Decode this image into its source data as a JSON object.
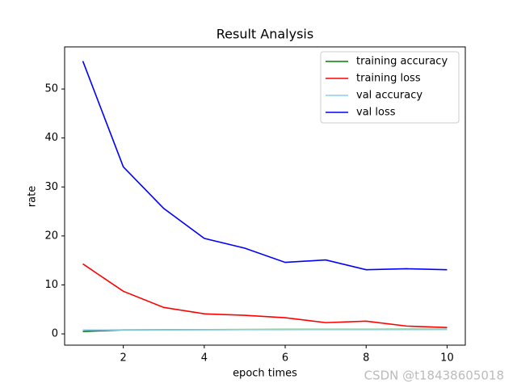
{
  "chart_data": {
    "type": "line",
    "title": "Result Analysis",
    "x_label": "epoch times",
    "y_label": "rate",
    "x": [
      1,
      2,
      3,
      4,
      5,
      6,
      7,
      8,
      9,
      10
    ],
    "series": [
      {
        "name": "training accuracy",
        "color": "#008000",
        "values": [
          0.5,
          0.8,
          0.85,
          0.87,
          0.88,
          0.9,
          0.9,
          0.92,
          0.93,
          0.94
        ]
      },
      {
        "name": "training loss",
        "color": "#ff0000",
        "values": [
          14.3,
          8.7,
          5.4,
          4.1,
          3.8,
          3.3,
          2.3,
          2.6,
          1.6,
          1.3
        ]
      },
      {
        "name": "val accuracy",
        "color": "#87ceeb",
        "values": [
          0.8,
          0.82,
          0.83,
          0.85,
          0.86,
          0.87,
          0.88,
          0.88,
          0.89,
          0.9
        ]
      },
      {
        "name": "val loss",
        "color": "#0000ff",
        "values": [
          55.7,
          34.1,
          25.6,
          19.5,
          17.5,
          14.6,
          15.1,
          13.1,
          13.3,
          13.1
        ]
      }
    ],
    "xlim": [
      0.55,
      10.45
    ],
    "ylim": [
      -2.3,
      58.6
    ],
    "xticks": [
      2,
      4,
      6,
      8,
      10
    ],
    "yticks": [
      0,
      10,
      20,
      30,
      40,
      50
    ],
    "legend": "upper right"
  },
  "watermark": "CSDN @t18438605018"
}
